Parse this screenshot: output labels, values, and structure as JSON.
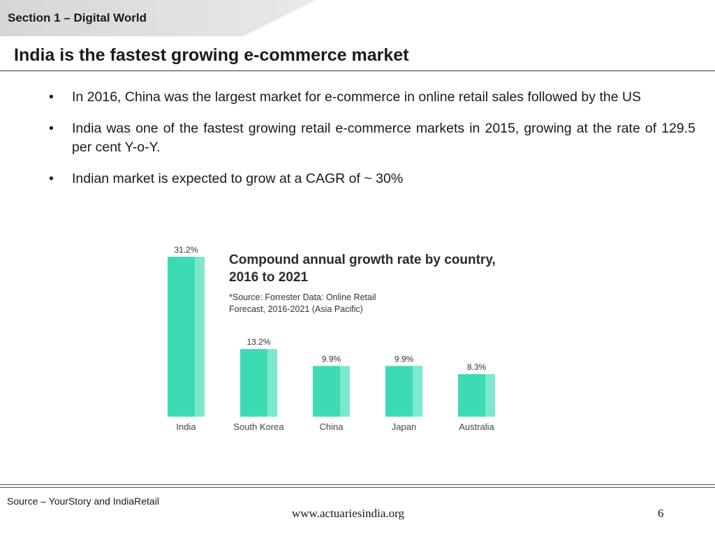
{
  "header": {
    "section": "Section 1 – Digital World"
  },
  "slide": {
    "title": "India is the fastest growing e-commerce market"
  },
  "bullets": [
    "In 2016, China was the largest market for e-commerce in online retail sales followed by the US",
    "India was one of the fastest growing retail e-commerce markets in 2015, growing at the rate of 129.5 per cent Y-o-Y.",
    "Indian market is expected to  grow at a CAGR of ~ 30%"
  ],
  "bullet_symbol": "•",
  "chart_data": {
    "type": "bar",
    "title": "Compound annual growth rate by country, 2016 to 2021",
    "title_lines": [
      "Compound annual growth rate by country,",
      "2016 to 2021"
    ],
    "subtitle_lines": [
      "*Source: Forrester Data: Online Retail",
      "Forecast, 2016-2021 (Asia Pacific)"
    ],
    "categories": [
      "India",
      "South Korea",
      "China",
      "Japan",
      "Australia"
    ],
    "values": [
      31.2,
      13.2,
      9.9,
      9.9,
      8.3
    ],
    "value_labels": [
      "31.2%",
      "13.2%",
      "9.9%",
      "9.9%",
      "8.3%"
    ],
    "ylim": [
      0,
      31.2
    ],
    "grid": false,
    "colors": {
      "bar": "#3ddbb3",
      "bar_highlight": "#7ce8cc"
    }
  },
  "footer": {
    "source": "Source – YourStory and IndiaRetail",
    "website": "www.actuariesindia.org",
    "page": "6"
  }
}
